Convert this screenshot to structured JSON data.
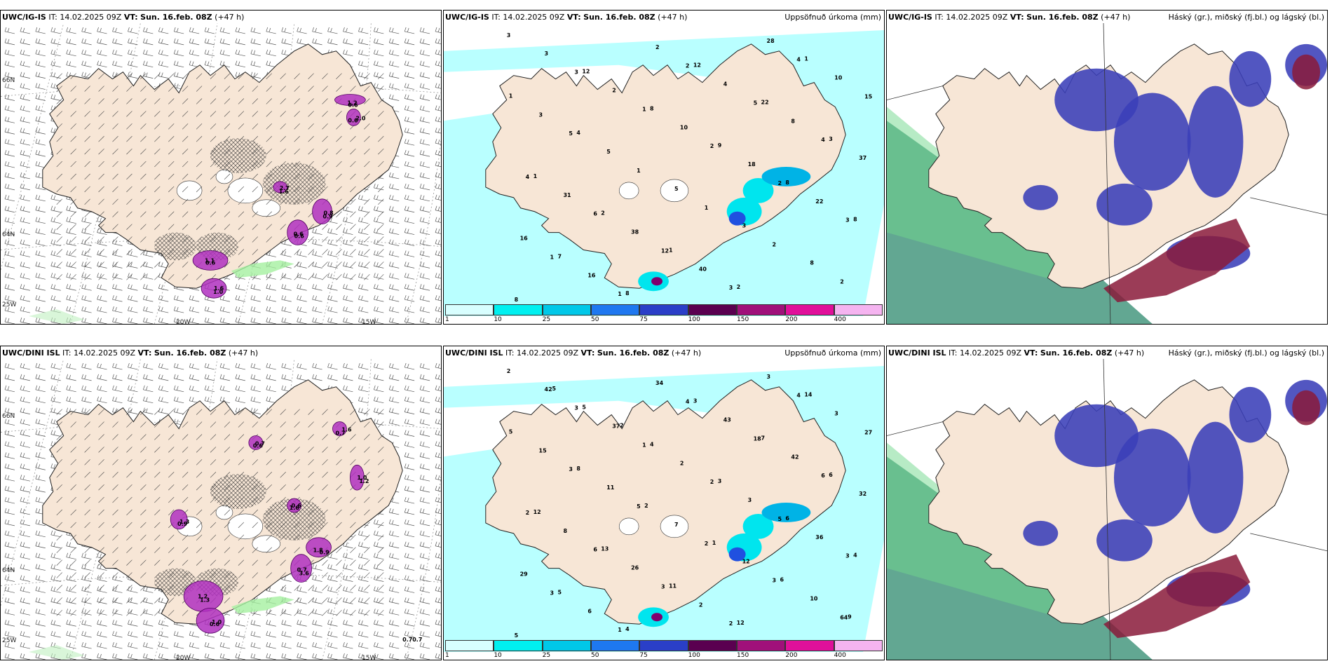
{
  "colors": {
    "land": "#f7e6d6",
    "sea_precip_light": "#b9ffff",
    "precip_cyan": "#00e5ee",
    "precip_blue": "#00b3e6",
    "precip_dark": "#2050e0",
    "precip_purple": "#80006e",
    "snow_magenta": "#b030c0",
    "cloud_high": "#2e8a6e",
    "cloud_mid": "#3a3fb8",
    "cloud_low": "#8a1a3a"
  },
  "panels": [
    {
      "id": "p1",
      "model": "UWC/IG-IS",
      "it_label": "IT:",
      "it_value": "14.02.2025 09Z",
      "vt_label": "VT:",
      "vt_value": "Sun. 16.feb. 08Z",
      "lead": "(+47 h)",
      "right_title": "",
      "type": "wind",
      "lat_ticks": [
        "66N",
        "64N",
        "25W"
      ],
      "lon_ticks": [
        "20W",
        "15W"
      ],
      "labels": [
        "1.1",
        "1.0",
        "0.6",
        "0.9",
        "1.2",
        "2.0",
        "1.6",
        "0.6",
        "1.6",
        "0.6",
        "0.8",
        "0.6",
        "0.6",
        "2.7"
      ]
    },
    {
      "id": "p2",
      "model": "UWC/IG-IS",
      "it_label": "IT:",
      "it_value": "14.02.2025 09Z",
      "vt_label": "VT:",
      "vt_value": "Sun. 16.feb. 08Z",
      "lead": "(+47 h)",
      "right_title": "Uppsöfnuð úrkoma (mm)",
      "type": "precip",
      "labels": [
        "3",
        "3",
        "1",
        "2",
        "2",
        "3",
        "1",
        "1",
        "2",
        "5",
        "4",
        "4",
        "6",
        "12",
        "3",
        "4",
        "15",
        "5",
        "1",
        "1",
        "2",
        "2",
        "3",
        "2",
        "10",
        "18",
        "22",
        "16",
        "16",
        "2",
        "4",
        "8",
        "37",
        "31",
        "38",
        "40",
        "28",
        "10",
        "3",
        "5",
        "5",
        "3",
        "8",
        "8",
        "12",
        "8",
        "9",
        "8",
        "8",
        "7",
        "8",
        "12",
        "22",
        "3",
        "1",
        "2",
        "1",
        "2",
        "1",
        "1",
        "4"
      ]
    },
    {
      "id": "p3",
      "model": "UWC/IG-IS",
      "it_label": "IT:",
      "it_value": "14.02.2025 09Z",
      "vt_label": "VT:",
      "vt_value": "Sun. 16.feb. 08Z",
      "lead": "(+47 h)",
      "right_title": "Háský (gr.), miðský (fj.bl.) og lágský (bl.)",
      "type": "cloud"
    },
    {
      "id": "p4",
      "model": "UWC/DINI ISL",
      "it_label": "IT:",
      "it_value": "14.02.2025 09Z",
      "vt_label": "VT:",
      "vt_value": "Sun. 16.feb. 08Z",
      "lead": "(+47 h)",
      "right_title": "",
      "type": "wind",
      "lat_ticks": [
        "66N",
        "64N",
        "25W"
      ],
      "lon_ticks": [
        "20W",
        "15W"
      ],
      "labels": [
        "1.2",
        "0.6",
        "0.7",
        "0.9",
        "0.6",
        "1.6",
        "0.9",
        "1.6",
        "1.0",
        "1.3",
        "1.0",
        "3.6",
        "1.8",
        "0.7",
        "0.7",
        "1.3",
        "0.6",
        "1.2"
      ],
      "bottom_label": "0.70.7"
    },
    {
      "id": "p5",
      "model": "UWC/DINI ISL",
      "it_label": "IT:",
      "it_value": "14.02.2025 09Z",
      "vt_label": "VT:",
      "vt_value": "Sun. 16.feb. 08Z",
      "lead": "(+47 h)",
      "right_title": "Uppsöfnuð úrkoma (mm)",
      "type": "precip",
      "labels": [
        "2",
        "3",
        "1",
        "2",
        "5",
        "3",
        "3",
        "1",
        "4",
        "18",
        "6",
        "2",
        "6",
        "3",
        "2",
        "4",
        "27",
        "3",
        "5",
        "2",
        "3",
        "64",
        "42",
        "37",
        "2",
        "3",
        "36",
        "29",
        "6",
        "34",
        "43",
        "42",
        "32",
        "8",
        "26",
        "2",
        "3",
        "3",
        "15",
        "11",
        "7",
        "12",
        "10",
        "5",
        "5",
        "4",
        "3",
        "6",
        "4",
        "5",
        "4",
        "3",
        "7",
        "6",
        "12",
        "13",
        "11",
        "12",
        "14",
        "5",
        "8",
        "2",
        "1",
        "6",
        "9",
        "5",
        "2"
      ]
    },
    {
      "id": "p6",
      "model": "UWC/DINI ISL",
      "it_label": "IT:",
      "it_value": "14.02.2025 09Z",
      "vt_label": "VT:",
      "vt_value": "Sun. 16.feb. 08Z",
      "lead": "(+47 h)",
      "right_title": "Háský (gr.), miðský (fj.bl.) og lágský (bl.)",
      "type": "cloud"
    }
  ],
  "colorbar": {
    "ticks": [
      "1",
      "10",
      "25",
      "50",
      "75",
      "100",
      "150",
      "200",
      "400"
    ],
    "colors": [
      "#d8ffff",
      "#00f0f0",
      "#00c8e8",
      "#1e78f0",
      "#2a3fc8",
      "#5a0050",
      "#a0107a",
      "#e0109a",
      "#f5b4f0"
    ]
  }
}
